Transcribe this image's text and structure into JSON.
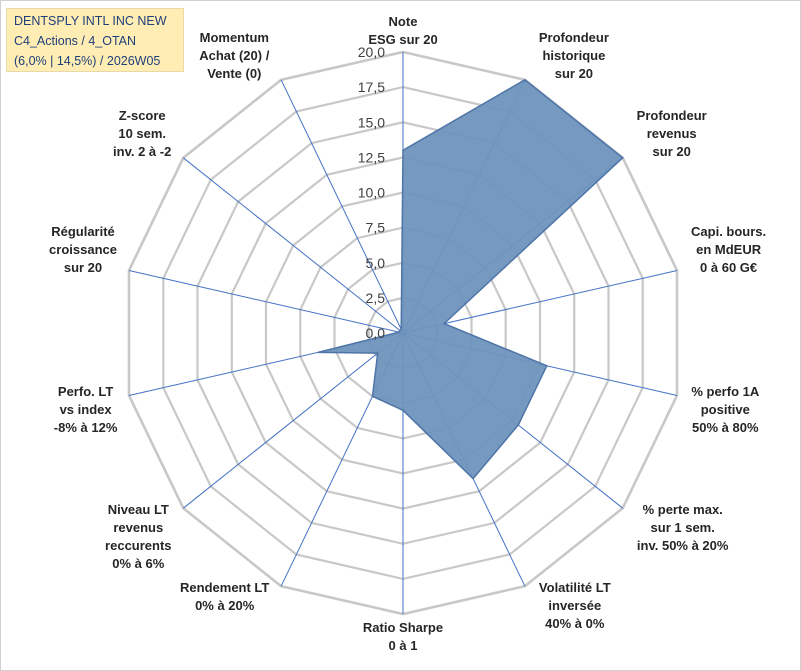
{
  "header": {
    "line1": "DENTSPLY INTL INC NEW",
    "line2": "C4_Actions / 4_OTAN",
    "line3": "(6,0% | 14,5%) / 2026W05"
  },
  "chart_data": {
    "type": "radar",
    "ylim": [
      0,
      20
    ],
    "tick_values": [
      0,
      2.5,
      5,
      7.5,
      10,
      12.5,
      15,
      17.5,
      20
    ],
    "tick_labels": [
      "0,0",
      "2,5",
      "5,0",
      "7,5",
      "10,0",
      "12,5",
      "15,0",
      "17,5",
      "20,0"
    ],
    "axes": [
      [
        "Note",
        "ESG sur 20"
      ],
      [
        "Profondeur",
        "historique",
        "sur 20"
      ],
      [
        "Profondeur",
        "revenus",
        "sur 20"
      ],
      [
        "Capi. bours.",
        "en MdEUR",
        "0 à 60 G€"
      ],
      [
        "% perfo 1A",
        "positive",
        "50% à 80%"
      ],
      [
        "% perte max.",
        "sur 1 sem.",
        "inv. 50% à 20%"
      ],
      [
        "Volatilité LT",
        "inversée",
        "40% à 0%"
      ],
      [
        "Ratio Sharpe",
        "0 à 1"
      ],
      [
        "Rendement LT",
        "0% à 20%"
      ],
      [
        "Niveau LT",
        "revenus",
        "reccurents",
        "0% à 6%"
      ],
      [
        "Perfo. LT",
        "vs index",
        "-8% à 12%"
      ],
      [
        "Régularité",
        "croissance",
        "sur 20"
      ],
      [
        "Z-score",
        "10 sem.",
        "inv. 2 à -2"
      ],
      [
        "Momentum",
        "Achat (20) /",
        "Vente (0)"
      ]
    ],
    "series": [
      {
        "name": "DENTSPLY INTL INC NEW",
        "values": [
          13,
          20,
          20,
          3,
          10.5,
          10.5,
          11.5,
          5.5,
          5,
          2.3,
          6.2,
          0.3,
          0.3,
          0.3
        ],
        "color": "#6f93bd",
        "stroke": "#4f75a8"
      }
    ],
    "grid_color": "#c8c8c8",
    "spoke_color": "#4472c4"
  }
}
